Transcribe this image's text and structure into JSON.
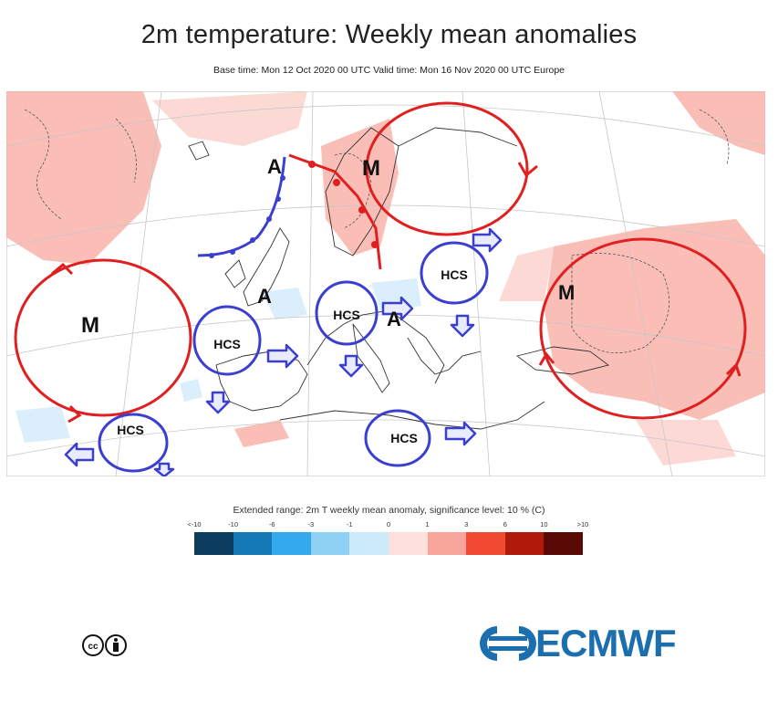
{
  "header": {
    "title": "2m temperature: Weekly mean anomalies",
    "subtitle": "Base time: Mon 12 Oct 2020 00 UTC Valid time: Mon 16 Nov 2020 00 UTC Europe"
  },
  "map": {
    "region": "Europe",
    "labels": {
      "anticyclone_north": "A",
      "anticyclone_west": "A",
      "anticyclone_central": "A",
      "cyclone_scandinavia": "M",
      "cyclone_atlantic": "M",
      "cyclone_east": "M"
    },
    "hcs_label": "HCS",
    "colors": {
      "red_annotation": "#e02020",
      "blue_annotation": "#3b3fd0"
    }
  },
  "legend": {
    "title": "Extended range: 2m T weekly mean anomaly, significance level: 10 % (C)",
    "ticks": [
      "<-10",
      "-10",
      "-6",
      "-3",
      "-1",
      "0",
      "1",
      "3",
      "6",
      "10",
      ">10"
    ],
    "colors": [
      "#0b3c5d",
      "#1579b8",
      "#33aaee",
      "#8fd0f5",
      "#cdeafb",
      "#fde0de",
      "#f8a69c",
      "#f04a33",
      "#b01a0a",
      "#5a0a05"
    ]
  },
  "footer": {
    "license_icon": "creative-commons-by-icon",
    "logo_text": "ECMWF"
  }
}
